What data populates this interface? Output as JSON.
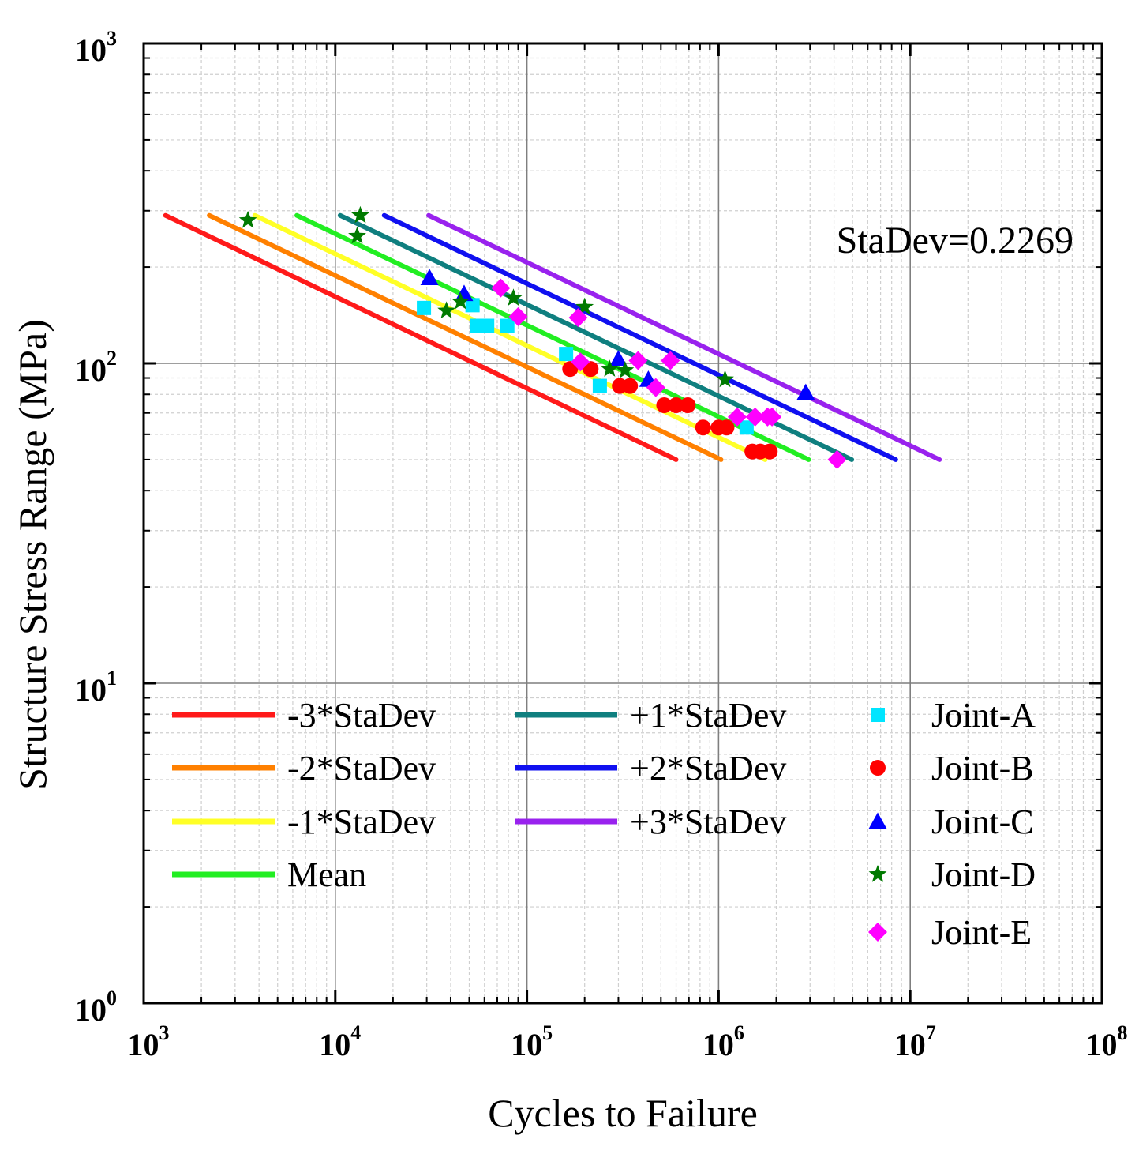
{
  "chart_data": {
    "type": "scatter",
    "title": "",
    "xlabel": "Cycles to Failure",
    "ylabel": "Structure Stress Range (MPa)",
    "xscale": "log",
    "yscale": "log",
    "xlim": [
      1000,
      100000000
    ],
    "ylim": [
      1,
      1000
    ],
    "grid": true,
    "x_ticks": [
      {
        "base": "10",
        "exp": "3",
        "value": 1000
      },
      {
        "base": "10",
        "exp": "4",
        "value": 10000
      },
      {
        "base": "10",
        "exp": "5",
        "value": 100000
      },
      {
        "base": "10",
        "exp": "6",
        "value": 1000000
      },
      {
        "base": "10",
        "exp": "7",
        "value": 10000000
      },
      {
        "base": "10",
        "exp": "8",
        "value": 100000000
      }
    ],
    "y_ticks": [
      {
        "base": "10",
        "exp": "0",
        "value": 1
      },
      {
        "base": "10",
        "exp": "1",
        "value": 10
      },
      {
        "base": "10",
        "exp": "2",
        "value": 100
      },
      {
        "base": "10",
        "exp": "3",
        "value": 1000
      }
    ],
    "annotation": "StaDev=0.2269",
    "legend_position": "bottom",
    "lines": [
      {
        "name": "-3*StaDev",
        "color": "#ff1a1a",
        "x": [
          1300,
          600000
        ],
        "y": [
          290,
          50
        ]
      },
      {
        "name": "-2*StaDev",
        "color": "#ff8000",
        "x": [
          2200,
          1030000
        ],
        "y": [
          290,
          50
        ]
      },
      {
        "name": "-1*StaDev",
        "color": "#ffff26",
        "x": [
          3800,
          1750000
        ],
        "y": [
          290,
          50
        ]
      },
      {
        "name": "Mean",
        "color": "#22ee22",
        "x": [
          6300,
          2950000
        ],
        "y": [
          290,
          50
        ]
      },
      {
        "name": "+1*StaDev",
        "color": "#0f7f7f",
        "x": [
          10600,
          4950000
        ],
        "y": [
          290,
          50
        ]
      },
      {
        "name": "+2*StaDev",
        "color": "#1010f0",
        "x": [
          18000,
          8400000
        ],
        "y": [
          290,
          50
        ]
      },
      {
        "name": "+3*StaDev",
        "color": "#9922ee",
        "x": [
          30700,
          14200000
        ],
        "y": [
          290,
          50
        ]
      }
    ],
    "series": [
      {
        "name": "Joint-A",
        "marker": "square",
        "color": "#00e5ff",
        "x": [
          29000,
          52000,
          55000,
          62000,
          79000,
          160000,
          240000,
          1400000
        ],
        "y": [
          149,
          152,
          131,
          131,
          131,
          107,
          85,
          63
        ]
      },
      {
        "name": "Joint-B",
        "marker": "circle",
        "color": "#ff0000",
        "x": [
          168000,
          215000,
          305000,
          345000,
          520000,
          600000,
          690000,
          830000,
          1000000,
          1100000,
          1500000,
          1650000,
          1850000
        ],
        "y": [
          96,
          96,
          85,
          85,
          74,
          74,
          74,
          63,
          63,
          63,
          53,
          53,
          53
        ]
      },
      {
        "name": "Joint-C",
        "marker": "triangle",
        "color": "#0000ff",
        "x": [
          31000,
          47000,
          300000,
          430000,
          2850000
        ],
        "y": [
          185,
          165,
          103,
          89,
          81
        ]
      },
      {
        "name": "Joint-D",
        "marker": "star",
        "color": "#007a00",
        "x": [
          3500,
          13000,
          13500,
          38000,
          45000,
          85000,
          200000,
          270000,
          325000,
          1080000
        ],
        "y": [
          280,
          250,
          290,
          146,
          156,
          160,
          150,
          96,
          95,
          89
        ]
      },
      {
        "name": "Joint-E",
        "marker": "diamond",
        "color": "#ff00ff",
        "x": [
          73000,
          90000,
          185000,
          190000,
          380000,
          470000,
          560000,
          1250000,
          1550000,
          1800000,
          1900000,
          4150000
        ],
        "y": [
          172,
          140,
          139,
          101,
          102,
          84,
          102,
          68,
          68,
          68,
          68,
          50
        ]
      }
    ]
  }
}
